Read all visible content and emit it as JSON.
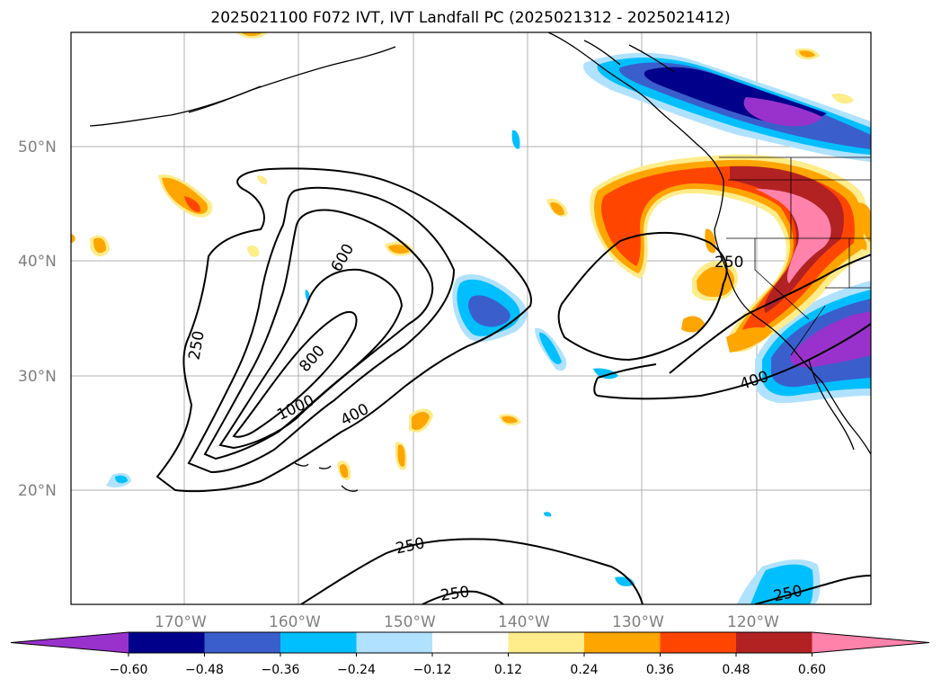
{
  "title": "2025021100 F072 IVT, IVT Landfall PC (2025021312 - 2025021412)",
  "lat_labels": [
    "50°N",
    "40°N",
    "30°N",
    "20°N"
  ],
  "lon_labels": [
    "170°W",
    "160°W",
    "150°W",
    "140°W",
    "130°W",
    "120°W"
  ],
  "contour_labels": [
    "600",
    "800",
    "1000",
    "400",
    "250",
    "250",
    "250",
    "250",
    "400",
    "250"
  ],
  "colorbar": {
    "ticks": [
      "−0.60",
      "−0.48",
      "−0.36",
      "−0.24",
      "−0.12",
      "0.12",
      "0.24",
      "0.36",
      "0.48",
      "0.60"
    ],
    "colors": [
      "#9932cc",
      "#00008b",
      "#3a5fcd",
      "#00bfff",
      "#b0e2ff",
      "#ffffff",
      "#ffec8b",
      "#ffa500",
      "#ff4500",
      "#b22222",
      "#ff82ab"
    ]
  },
  "colors": {
    "gridline": "#b0b0b0",
    "frame": "#000000"
  }
}
